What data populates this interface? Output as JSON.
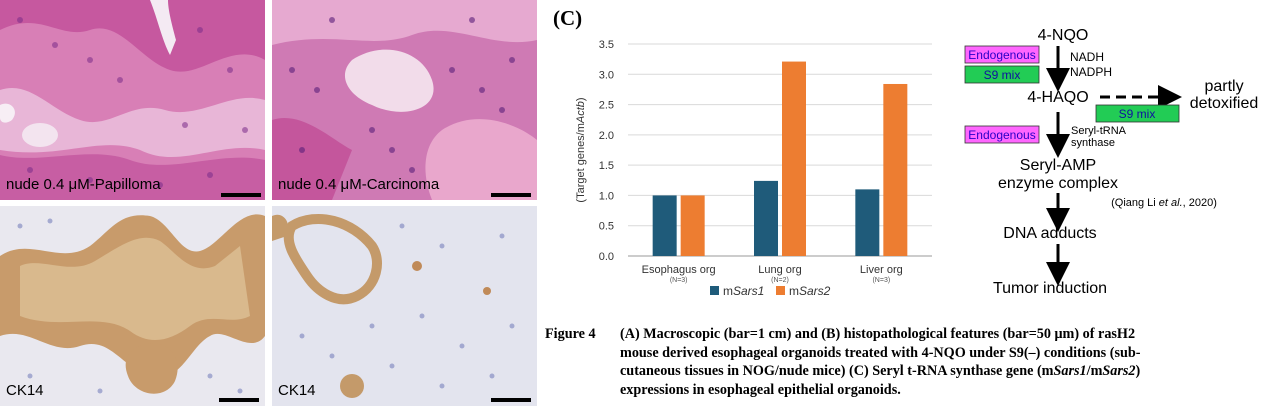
{
  "panels": [
    {
      "label": "nude 0.4 μM-Papilloma",
      "stain": "he"
    },
    {
      "label": "nude 0.4 μM-Carcinoma",
      "stain": "he"
    },
    {
      "label": "CK14",
      "stain": "ihc"
    },
    {
      "label": "CK14",
      "stain": "ihc"
    }
  ],
  "figure_c_label": "(C)",
  "chart_data": {
    "type": "bar",
    "ylabel": "(Target genes/mActb)",
    "ylim": [
      0,
      3.5
    ],
    "yticks": [
      "0.0",
      "0.5",
      "1.0",
      "1.5",
      "2.0",
      "2.5",
      "3.0",
      "3.5"
    ],
    "categories": [
      "Esophagus org",
      "Lung org",
      "Liver org"
    ],
    "category_notes": [
      "(N=3)",
      "(N=2)",
      "(N=3)"
    ],
    "series": [
      {
        "name": "mSars1",
        "color": "#1f5b7a",
        "values": [
          1.0,
          1.24,
          1.1
        ]
      },
      {
        "name": "mSars2",
        "color": "#ed7d31",
        "values": [
          1.0,
          3.21,
          2.84
        ]
      }
    ],
    "legend": "bottom",
    "grid": true
  },
  "flow": {
    "step1": "4-NQO",
    "endogenous1": "Endogenous",
    "s9_1": "S9 mix",
    "cofactor1": "NADH",
    "cofactor2": "NADPH",
    "step2": "4-HAQO",
    "s9_2": "S9 mix",
    "side_line1": "partly",
    "side_line2": "detoxified",
    "endogenous2": "Endogenous",
    "enzyme_line1": "Seryl-tRNA",
    "enzyme_line2": "synthase",
    "step3_line1": "Seryl-AMP",
    "step3_line2": "enzyme complex",
    "citation": "(Qiang Li et al., 2020)",
    "step4": "DNA adducts",
    "step5": "Tumor induction"
  },
  "colors": {
    "endogenous_bg": "#ff66ff",
    "endogenous_text": "#2a00c8",
    "s9_bg": "#22cc55",
    "s9_text": "#1010a0"
  },
  "caption": {
    "lead": "Figure 4",
    "lines": [
      "(A) Macroscopic (bar=1 cm) and (B) histopathological features (bar=50 μm) of rasH2",
      "mouse derived esophageal organoids treated with 4-NQO under S9(–) conditions (sub-",
      "cutaneous tissues in NOG/nude mice) (C) Seryl t-RNA synthase gene (mSars1/mSars2)",
      "expressions in esophageal epithelial organoids."
    ]
  }
}
